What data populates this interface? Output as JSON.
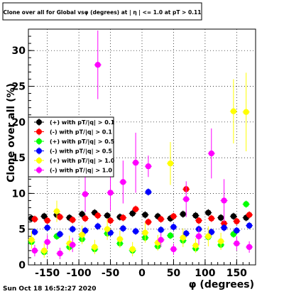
{
  "chart_data": {
    "type": "scatter",
    "title": "Clone  over all for Global vsφ (degrees) at | η | <= 1.0 at pT > 0.11",
    "xlabel": "φ (degrees)",
    "ylabel": "Clone  over all (%)",
    "footer": "Sun Oct 18 16:52:27 2020",
    "xlim": [
      -180,
      180
    ],
    "ylim": [
      0,
      33
    ],
    "x_ticks": [
      -150,
      -100,
      -50,
      0,
      50,
      100,
      150
    ],
    "y_ticks": [
      0,
      5,
      10,
      15,
      20,
      25,
      30
    ],
    "grid": true,
    "legend_position": "left-middle",
    "series": [
      {
        "name": "(+) with pT/|q| > 0.1",
        "color": "#000000",
        "x": [
          -175,
          -155,
          -135,
          -115,
          -95,
          -75,
          -55,
          -35,
          -15,
          5,
          25,
          45,
          65,
          85,
          105,
          125,
          145,
          165
        ],
        "y": [
          6.5,
          6.8,
          7.0,
          6.6,
          7.1,
          7.3,
          6.9,
          6.7,
          7.2,
          7.0,
          6.8,
          6.5,
          7.1,
          6.9,
          7.3,
          6.6,
          6.8,
          6.6
        ]
      },
      {
        "name": "(-) with pT/|q| > 0.1",
        "color": "#ff0000",
        "x": [
          -170,
          -150,
          -130,
          -110,
          -90,
          -70,
          -50,
          -30,
          -10,
          10,
          30,
          50,
          70,
          90,
          110,
          130,
          150,
          170
        ],
        "y": [
          6.4,
          6.2,
          6.7,
          6.3,
          6.5,
          6.9,
          6.2,
          6.6,
          7.8,
          6.0,
          6.4,
          6.8,
          10.6,
          6.2,
          6.5,
          5.8,
          6.1,
          7.0
        ]
      },
      {
        "name": "(+) with pT/|q| > 0.5",
        "color": "#00ff00",
        "x": [
          -175,
          -155,
          -135,
          -115,
          -95,
          -75,
          -55,
          -35,
          -15,
          5,
          25,
          45,
          65,
          85,
          105,
          125,
          145,
          165
        ],
        "y": [
          3.2,
          1.8,
          4.0,
          2.5,
          3.6,
          2.2,
          4.4,
          3.0,
          2.0,
          3.8,
          2.6,
          4.1,
          3.4,
          2.3,
          3.9,
          2.8,
          4.3,
          8.5
        ]
      },
      {
        "name": "(-) with pT/|q| > 0.5",
        "color": "#0000ff",
        "x": [
          -170,
          -150,
          -130,
          -110,
          -90,
          -70,
          -50,
          -30,
          -10,
          10,
          30,
          50,
          70,
          90,
          110,
          130,
          150,
          170
        ],
        "y": [
          4.6,
          5.2,
          4.3,
          5.0,
          4.8,
          5.4,
          4.5,
          5.1,
          4.7,
          10.2,
          4.9,
          5.3,
          4.4,
          5.0,
          4.6,
          5.2,
          4.8,
          5.5
        ]
      },
      {
        "name": "(+) with pT/|q| > 1.0",
        "color": "#ffff00",
        "x": [
          -175,
          -155,
          -135,
          -115,
          -95,
          -75,
          -55,
          -35,
          -15,
          5,
          25,
          45,
          65,
          85,
          105,
          125,
          145,
          165
        ],
        "y": [
          3.5,
          2.0,
          7.5,
          3.0,
          4.2,
          2.5,
          5.0,
          3.6,
          2.2,
          4.5,
          3.1,
          14.2,
          3.8,
          2.7,
          4.0,
          3.3,
          21.5,
          21.4
        ],
        "err": [
          1.2,
          1.0,
          1.5,
          1.1,
          1.3,
          1.0,
          1.5,
          1.2,
          1.0,
          1.4,
          1.1,
          3.0,
          1.3,
          1.0,
          1.4,
          1.2,
          4.5,
          5.5
        ]
      },
      {
        "name": "(-) with pT/|q| > 1.0",
        "color": "#ff00ff",
        "x": [
          -170,
          -150,
          -130,
          -110,
          -90,
          -70,
          -50,
          -30,
          -10,
          10,
          30,
          50,
          70,
          90,
          110,
          130,
          150,
          170
        ],
        "y": [
          2.0,
          3.2,
          1.6,
          2.8,
          9.9,
          28.0,
          10.1,
          11.6,
          14.3,
          13.8,
          3.5,
          2.2,
          9.2,
          4.0,
          15.6,
          9.0,
          3.0,
          2.5
        ],
        "err": [
          0.8,
          1.0,
          0.8,
          1.0,
          2.5,
          4.8,
          2.5,
          3.0,
          4.2,
          1.5,
          1.0,
          0.8,
          2.5,
          1.2,
          3.5,
          3.0,
          1.0,
          0.8
        ]
      }
    ]
  }
}
